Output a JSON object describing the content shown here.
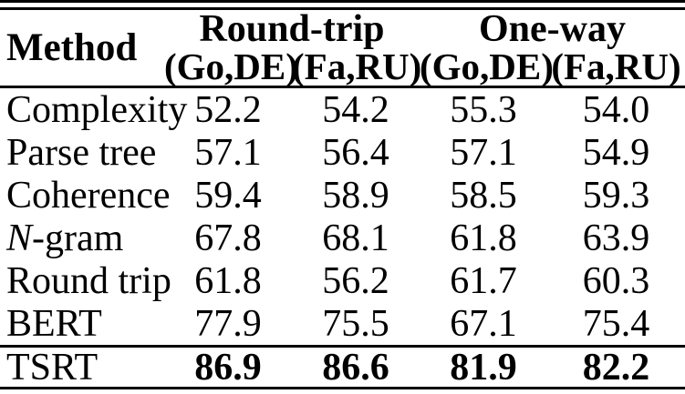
{
  "table": {
    "header": {
      "method": "Method",
      "groups": [
        {
          "label": "Round-trip"
        },
        {
          "label": "One-way"
        }
      ],
      "subheaders": [
        "(Go,DE)",
        "(Fa,RU)",
        "(Go,DE)",
        "(Fa,RU)"
      ]
    },
    "rows": [
      {
        "method": "Complexity",
        "values": [
          "52.2",
          "54.2",
          "55.3",
          "54.0"
        ]
      },
      {
        "method": "Parse tree",
        "values": [
          "57.1",
          "56.4",
          "57.1",
          "54.9"
        ]
      },
      {
        "method": "Coherence",
        "values": [
          "59.4",
          "58.9",
          "58.5",
          "59.3"
        ]
      },
      {
        "method": "N-gram",
        "values": [
          "67.8",
          "68.1",
          "61.8",
          "63.9"
        ]
      },
      {
        "method": "Round trip",
        "values": [
          "61.8",
          "56.2",
          "61.7",
          "60.3"
        ]
      },
      {
        "method": "BERT",
        "values": [
          "77.9",
          "75.5",
          "67.1",
          "75.4"
        ]
      }
    ],
    "highlight_row": {
      "method": "TSRT",
      "values": [
        "86.9",
        "86.6",
        "81.9",
        "82.2"
      ]
    },
    "colors": {
      "text": "#000000",
      "background": "#ffffff",
      "rule": "#000000"
    }
  },
  "chart_data": {
    "type": "table",
    "columns": [
      "Method",
      "Round-trip (Go,DE)",
      "Round-trip (Fa,RU)",
      "One-way (Go,DE)",
      "One-way (Fa,RU)"
    ],
    "rows": [
      [
        "Complexity",
        52.2,
        54.2,
        55.3,
        54.0
      ],
      [
        "Parse tree",
        57.1,
        56.4,
        57.1,
        54.9
      ],
      [
        "Coherence",
        59.4,
        58.9,
        58.5,
        59.3
      ],
      [
        "N-gram",
        67.8,
        68.1,
        61.8,
        63.9
      ],
      [
        "Round trip",
        61.8,
        56.2,
        61.7,
        60.3
      ],
      [
        "BERT",
        77.9,
        75.5,
        67.1,
        75.4
      ],
      [
        "TSRT",
        86.9,
        86.6,
        81.9,
        82.2
      ]
    ],
    "bold_row": "TSRT"
  }
}
